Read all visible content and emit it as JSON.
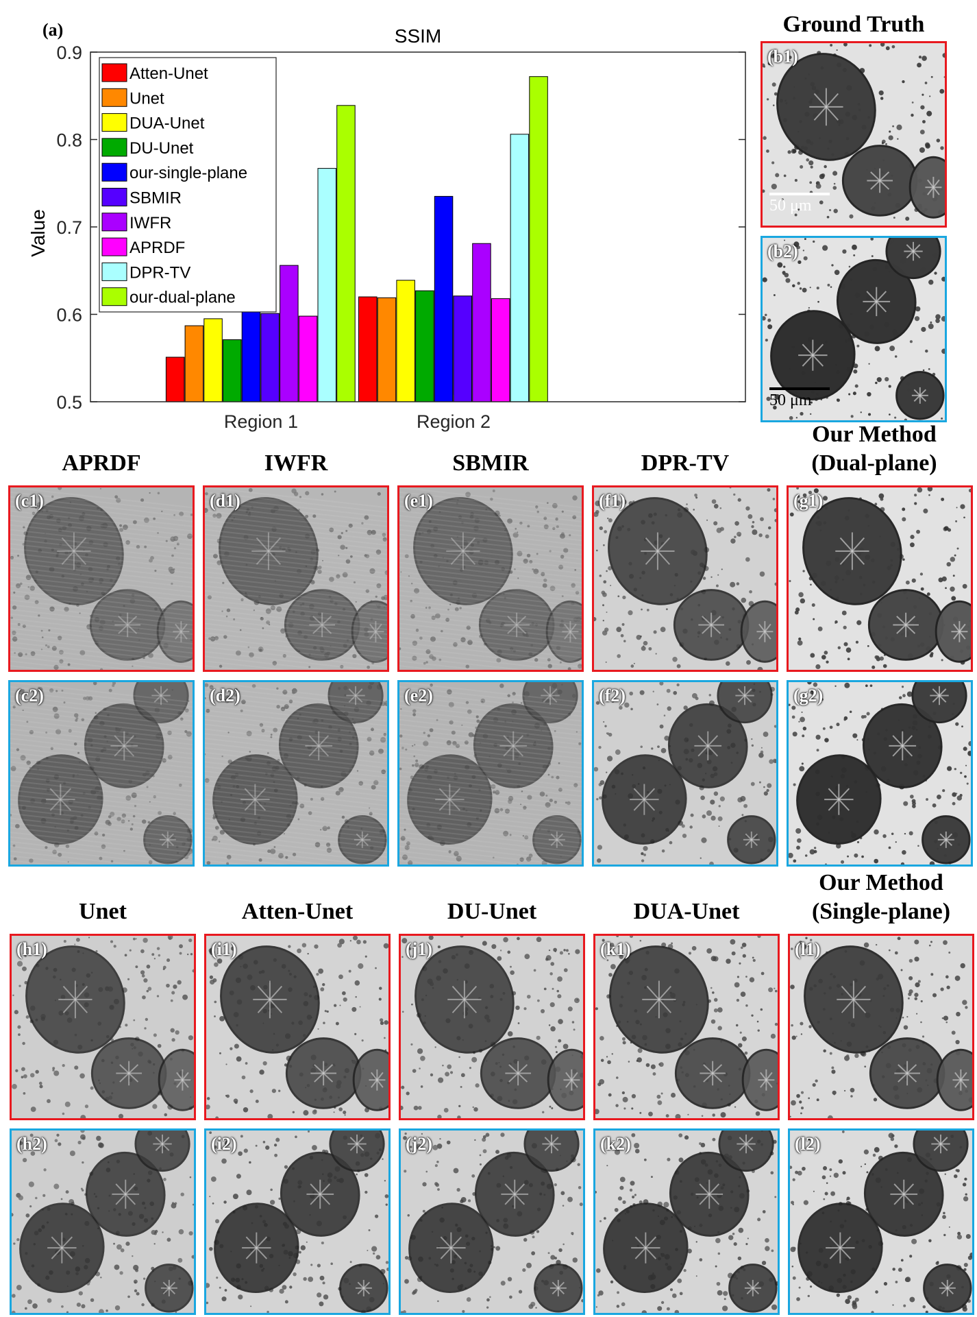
{
  "panel_a": {
    "label": "(a)"
  },
  "chart_data": {
    "type": "bar",
    "title": "SSIM",
    "xlabel": "",
    "ylabel": "Value",
    "categories": [
      "Region 1",
      "Region 2"
    ],
    "ylim": [
      0.5,
      0.9
    ],
    "yticks": [
      "0.5",
      "0.6",
      "0.7",
      "0.8",
      "0.9"
    ],
    "legend_position": "top-left",
    "grid": false,
    "series": [
      {
        "name": "Atten-Unet",
        "color": "#ff0000",
        "values": [
          0.551,
          0.62
        ]
      },
      {
        "name": "Unet",
        "color": "#ff8800",
        "values": [
          0.587,
          0.619
        ]
      },
      {
        "name": "DUA-Unet",
        "color": "#ffff00",
        "values": [
          0.595,
          0.639
        ]
      },
      {
        "name": "DU-Unet",
        "color": "#00aa00",
        "values": [
          0.571,
          0.627
        ]
      },
      {
        "name": "our-single-plane",
        "color": "#0000ff",
        "values": [
          0.667,
          0.735
        ]
      },
      {
        "name": "SBMIR",
        "color": "#5500ff",
        "values": [
          0.601,
          0.621
        ]
      },
      {
        "name": "IWFR",
        "color": "#aa00ff",
        "values": [
          0.656,
          0.681
        ]
      },
      {
        "name": "APRDF",
        "color": "#ff00ff",
        "values": [
          0.598,
          0.618
        ]
      },
      {
        "name": "DPR-TV",
        "color": "#aaffff",
        "values": [
          0.767,
          0.806
        ]
      },
      {
        "name": "our-dual-plane",
        "color": "#aaff00",
        "values": [
          0.839,
          0.872
        ]
      }
    ]
  },
  "headers": {
    "ground_truth": "Ground Truth",
    "row1": [
      "APRDF",
      "IWFR",
      "SBMIR",
      "DPR-TV"
    ],
    "ours_dual": [
      "Our Method",
      "(Dual-plane)"
    ],
    "row2": [
      "Unet",
      "Atten-Unet",
      "DU-Unet",
      "DUA-Unet"
    ],
    "ours_single": [
      "Our Method",
      "(Single-plane)"
    ]
  },
  "scalebar": {
    "text": "50 μm"
  },
  "region_colors": {
    "region1": "#e8191f",
    "region2": "#1aa7e0"
  },
  "panels": {
    "b1": "(b1)",
    "b2": "(b2)",
    "c1": "(c1)",
    "d1": "(d1)",
    "e1": "(e1)",
    "f1": "(f1)",
    "g1": "(g1)",
    "c2": "(c2)",
    "d2": "(d2)",
    "e2": "(e2)",
    "f2": "(f2)",
    "g2": "(g2)",
    "h1": "(h1)",
    "i1": "(i1)",
    "j1": "(j1)",
    "k1": "(k1)",
    "l1": "(l1)",
    "h2": "(h2)",
    "i2": "(i2)",
    "j2": "(j2)",
    "k2": "(k2)",
    "l2": "(l2)"
  }
}
